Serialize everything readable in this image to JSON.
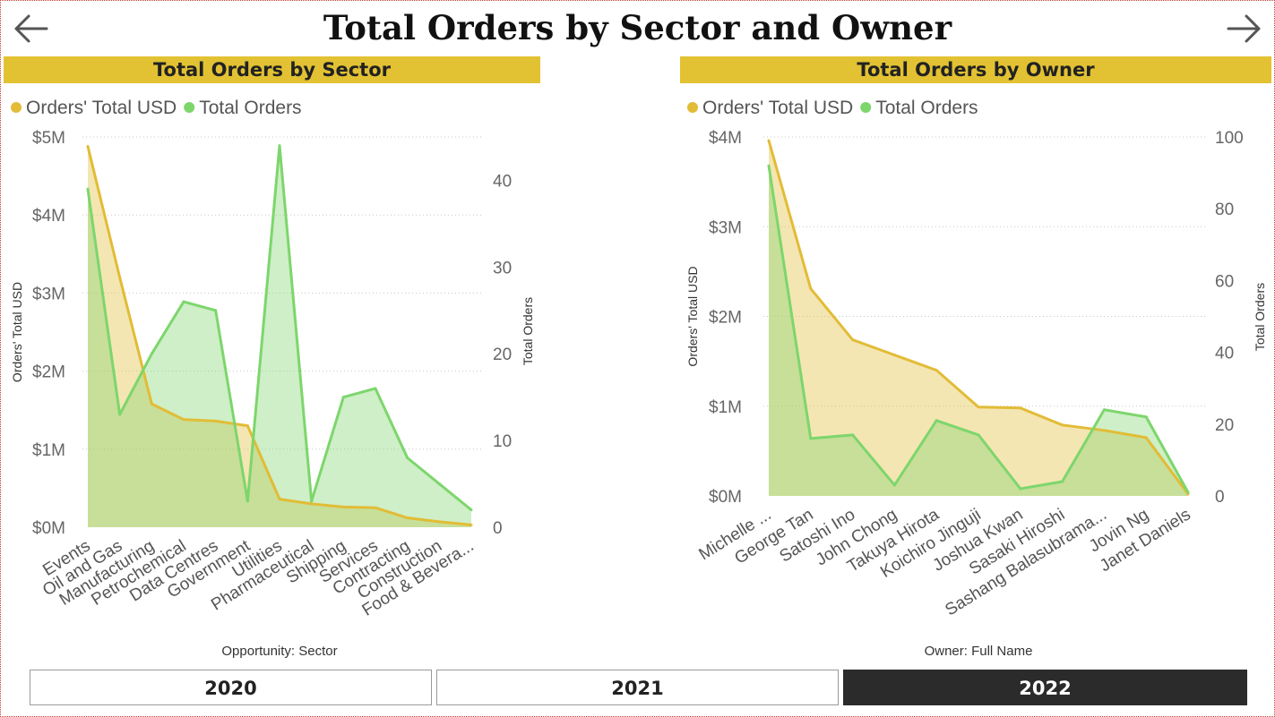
{
  "title": "Total Orders by Sector and Owner",
  "nav": {
    "back_icon": "arrow-left-icon",
    "next_icon": "arrow-right-icon"
  },
  "colors": {
    "header_bar": "#e2c232",
    "usd_series": "#e2bc36",
    "orders_series": "#7dd66c",
    "selected_slicer": "#2b2b2b"
  },
  "slicer": {
    "options": [
      "2020",
      "2021",
      "2022"
    ],
    "selected": "2022"
  },
  "chart_data": [
    {
      "type": "area",
      "title": "Total Orders by Sector",
      "xlabel": "Opportunity: Sector",
      "ylabel": "Orders' Total USD",
      "y2label": "Total Orders",
      "legend_position": "top-left",
      "categories": [
        "Events",
        "Oil and Gas",
        "Manufacturing",
        "Petrochemical",
        "Data Centres",
        "Government",
        "Utilities",
        "Pharmaceutical",
        "Shipping",
        "Services",
        "Contracting",
        "Construction",
        "Food & Bevera..."
      ],
      "series": [
        {
          "name": "Orders' Total USD",
          "axis": "left",
          "values": [
            4880000,
            3200000,
            1580000,
            1380000,
            1360000,
            1300000,
            360000,
            300000,
            260000,
            250000,
            120000,
            70000,
            30000
          ]
        },
        {
          "name": "Total Orders",
          "axis": "right",
          "values": [
            39,
            13,
            20,
            26,
            25,
            3,
            44,
            3,
            15,
            16,
            8,
            5,
            2
          ]
        }
      ],
      "ylim": [
        0,
        5000000
      ],
      "y_ticks": [
        "$0M",
        "$1M",
        "$2M",
        "$3M",
        "$4M",
        "$5M"
      ],
      "y2lim": [
        0,
        45
      ],
      "y2_ticks": [
        "0",
        "10",
        "20",
        "30",
        "40"
      ],
      "grid": true
    },
    {
      "type": "area",
      "title": "Total Orders by Owner",
      "xlabel": "Owner: Full Name",
      "ylabel": "Orders' Total USD",
      "y2label": "Total Orders",
      "legend_position": "top-left",
      "categories": [
        "Michelle ...",
        "George Tan",
        "Satoshi Ino",
        "John Chong",
        "Takuya Hirota",
        "Koichiro Jinguji",
        "Joshua Kwan",
        "Sasaki Hiroshi",
        "Sashang Balasubrama...",
        "Jovin Ng",
        "Janet Daniels"
      ],
      "series": [
        {
          "name": "Orders' Total USD",
          "axis": "left",
          "values": [
            3960000,
            2310000,
            1740000,
            1570000,
            1400000,
            990000,
            980000,
            790000,
            730000,
            650000,
            20000
          ]
        },
        {
          "name": "Total Orders",
          "axis": "right",
          "values": [
            92,
            16,
            17,
            3,
            21,
            17,
            2,
            4,
            24,
            22,
            1
          ]
        }
      ],
      "ylim": [
        0,
        4000000
      ],
      "y_ticks": [
        "$0M",
        "$1M",
        "$2M",
        "$3M",
        "$4M"
      ],
      "y2lim": [
        0,
        100
      ],
      "y2_ticks": [
        "0",
        "20",
        "40",
        "60",
        "80",
        "100"
      ],
      "grid": true
    }
  ]
}
